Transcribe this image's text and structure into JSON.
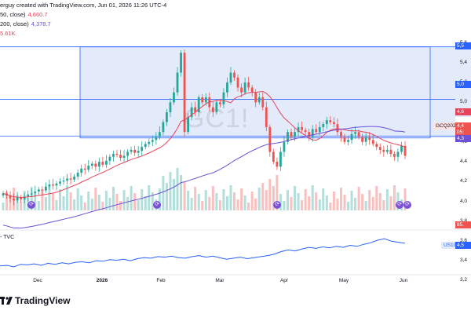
{
  "header": {
    "created_by": "erguy created with TradingView.com, Jun 01, 2026 11:26 UTC-4",
    "ma50_label": "50, close)",
    "ma50_value": "4,660.7",
    "ma200_label": "200, close)",
    "ma200_value": "4,378.7",
    "volume_value": "5.61K"
  },
  "watermark": "GC1!",
  "symbol_tag": "GCQ2026",
  "price_tags": {
    "upper_zone": "5,5",
    "mid_zone": "5,0",
    "ma50": "4,6",
    "last": "4,4",
    "countdown": "05:",
    "ma200": "4,3",
    "volume": "85.",
    "us10y": "4,5"
  },
  "subpane": {
    "label": "- TVC",
    "symbol_tag": "US10Y"
  },
  "colors": {
    "up": "#26a69a",
    "down": "#ef5350",
    "ma50": "#e8425a",
    "ma200": "#6e4fd8",
    "zone_fill": "#e3ebfb",
    "zone_line": "#2962ff",
    "us10y": "#2962ff",
    "vol_up": "#b2dfdb",
    "vol_down": "#f8c0bf"
  },
  "icons": [
    "tradingview-logo-icon",
    "event-marker-icon"
  ],
  "brand": "TradingView",
  "chart_data": [
    {
      "type": "candlestick",
      "title": "GC1!",
      "x_ticks": [
        "Dec",
        "2026",
        "Feb",
        "Mar",
        "Apr",
        "May",
        "Jun"
      ],
      "y_ticks": [
        "5,6",
        "5,4",
        "5,2",
        "5,0",
        "4,8",
        "4,6",
        "4,4",
        "4,2",
        "4,0",
        "3,8",
        "3,6",
        "3,4",
        "3,2"
      ],
      "ylim": [
        3180,
        5700
      ],
      "close": [
        4080,
        4060,
        4030,
        4010,
        4040,
        4020,
        4050,
        4070,
        4080,
        4100,
        4120,
        4110,
        4150,
        4170,
        4160,
        4180,
        4200,
        4210,
        4230,
        4220,
        4250,
        4290,
        4330,
        4320,
        4360,
        4380,
        4350,
        4400,
        4370,
        4410,
        4450,
        4480,
        4470,
        4440,
        4460,
        4500,
        4520,
        4490,
        4510,
        4550,
        4580,
        4600,
        4620,
        4650,
        4700,
        4800,
        4900,
        5000,
        5100,
        5300,
        5500,
        4700,
        4850,
        4950,
        4900,
        5050,
        5000,
        5050,
        4950,
        4900,
        5000,
        4980,
        5100,
        5200,
        5300,
        5250,
        5150,
        5100,
        5200,
        5150,
        5100,
        5000,
        5050,
        4950,
        4750,
        4500,
        4400,
        4350,
        4500,
        4600,
        4700,
        4650,
        4700,
        4750,
        4720,
        4700,
        4650,
        4730,
        4700,
        4750,
        4780,
        4820,
        4800,
        4780,
        4700,
        4650,
        4600,
        4620,
        4680,
        4700,
        4650,
        4600,
        4650,
        4620,
        4580,
        4550,
        4520,
        4500,
        4520,
        4480,
        4450,
        4500,
        4560,
        4460
      ],
      "bands": [
        {
          "name": "zone",
          "from": 4640,
          "to": 5560
        }
      ],
      "levels": [
        5560,
        5030,
        4660
      ],
      "ma50_last": 4660.7,
      "ma200_last": 4378.7
    },
    {
      "type": "line",
      "title": "US10Y",
      "values": [
        4.02,
        4.03,
        4.0,
        4.05,
        4.04,
        4.06,
        4.03,
        4.07,
        4.05,
        4.08,
        4.06,
        4.09,
        4.1,
        4.08,
        4.12,
        4.11,
        4.14,
        4.13,
        4.15,
        4.12,
        4.16,
        4.18,
        4.17,
        4.2,
        4.19,
        4.21,
        4.18,
        4.17,
        4.2,
        4.22,
        4.19,
        4.21,
        4.18,
        4.15,
        4.17,
        4.19,
        4.16,
        4.18,
        4.2,
        4.22,
        4.25,
        4.3,
        4.33,
        4.31,
        4.35,
        4.38,
        4.36,
        4.39,
        4.37,
        4.4,
        4.38,
        4.42,
        4.4,
        4.44,
        4.47,
        4.52,
        4.55,
        4.5,
        4.48,
        4.46
      ]
    }
  ]
}
